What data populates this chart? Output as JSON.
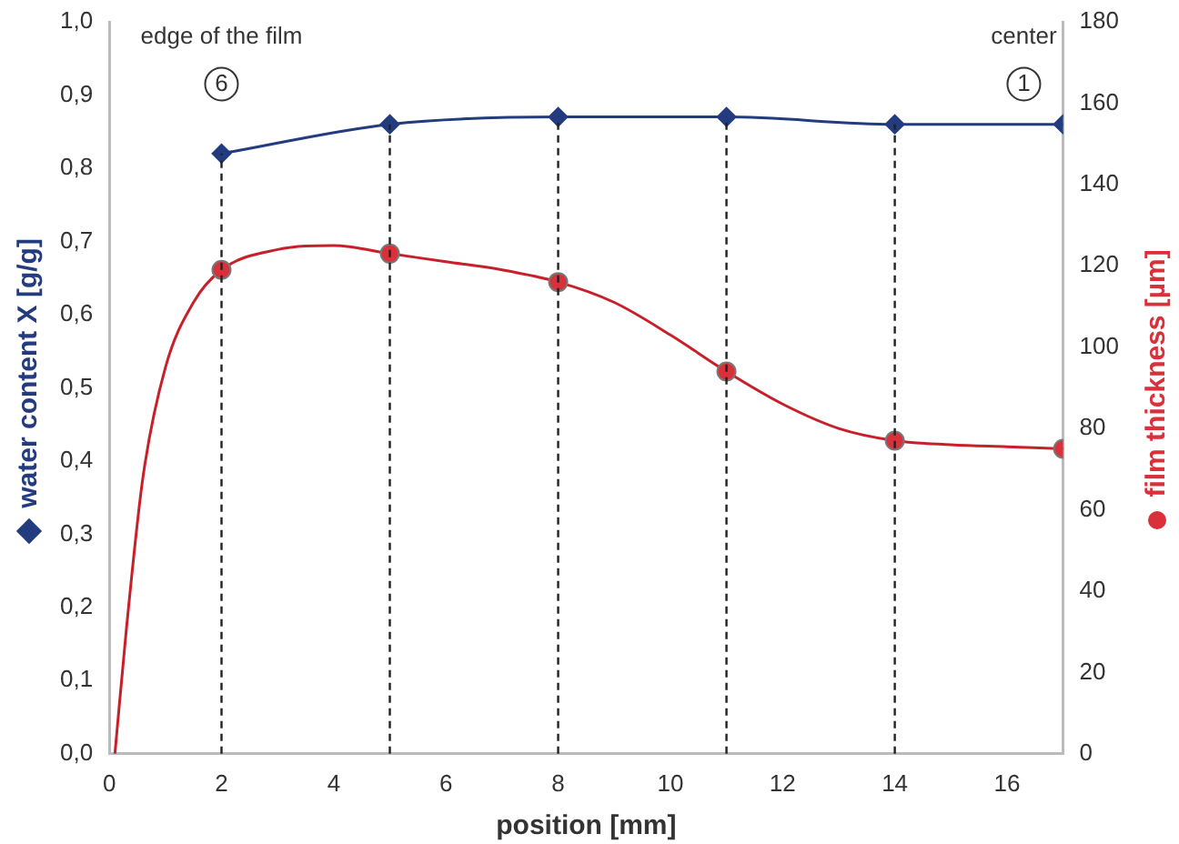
{
  "chart_data": {
    "type": "line",
    "xlabel": "position [mm]",
    "ylabel": "water content X [g/g]",
    "y2label": "film thickness [µm]",
    "xlim": [
      0,
      17
    ],
    "xticks": [
      0,
      2,
      4,
      6,
      8,
      10,
      12,
      14,
      16
    ],
    "ylim": [
      0,
      1
    ],
    "yticks": [
      {
        "value": 0,
        "label": "0,0"
      },
      {
        "value": 0.1,
        "label": "0,1"
      },
      {
        "value": 0.2,
        "label": "0,2"
      },
      {
        "value": 0.3,
        "label": "0,3"
      },
      {
        "value": 0.4,
        "label": "0,4"
      },
      {
        "value": 0.5,
        "label": "0,5"
      },
      {
        "value": 0.6,
        "label": "0,6"
      },
      {
        "value": 0.7,
        "label": "0,7"
      },
      {
        "value": 0.8,
        "label": "0,8"
      },
      {
        "value": 0.9,
        "label": "0,9"
      },
      {
        "value": 1,
        "label": "1,0"
      }
    ],
    "y2lim": [
      0,
      180
    ],
    "y2ticks": [
      0,
      20,
      40,
      60,
      80,
      100,
      120,
      140,
      160,
      180
    ],
    "grid": false,
    "legend": false,
    "series": [
      {
        "color": "#233c80",
        "marker": "diamond",
        "x": [
          2,
          5,
          8,
          11,
          14,
          17
        ],
        "values": [
          0.82,
          0.86,
          0.87,
          0.87,
          0.86,
          0.86
        ]
      },
      {
        "type": "scatter",
        "axis": "y2",
        "color": "#d9303a",
        "marker": "circle",
        "x": [
          2,
          5,
          8,
          11,
          14,
          17
        ],
        "values": [
          119,
          123,
          116,
          94,
          77,
          75
        ]
      },
      {
        "type": "line",
        "axis": "y2",
        "color": "#c8202a",
        "marker": "none",
        "x": [
          0.1,
          0.3,
          0.6,
          1,
          1.5,
          2,
          3,
          4,
          5,
          6,
          7,
          8,
          9,
          10,
          11,
          12,
          13,
          14,
          15,
          16,
          17
        ],
        "values": [
          0,
          30,
          68,
          95,
          111,
          119,
          124,
          125,
          123,
          121,
          119,
          116,
          111,
          103,
          94,
          86,
          80,
          77,
          76,
          75.5,
          75
        ]
      }
    ],
    "ref_lines": [
      {
        "axis": "x",
        "value": 2,
        "line_style": "dashed",
        "color": "#222222"
      },
      {
        "axis": "x",
        "value": 5,
        "line_style": "dashed",
        "color": "#222222"
      },
      {
        "axis": "x",
        "value": 8,
        "line_style": "dashed",
        "color": "#222222"
      },
      {
        "axis": "x",
        "value": 11,
        "line_style": "dashed",
        "color": "#222222"
      },
      {
        "axis": "x",
        "value": 14,
        "line_style": "dashed",
        "color": "#222222"
      }
    ],
    "annotations": [
      "edge of the film",
      {
        "text": "6",
        "x": 2,
        "y": 0.915
      },
      "center",
      {
        "text": "1",
        "x": 16.3,
        "y": 0.915
      }
    ]
  }
}
